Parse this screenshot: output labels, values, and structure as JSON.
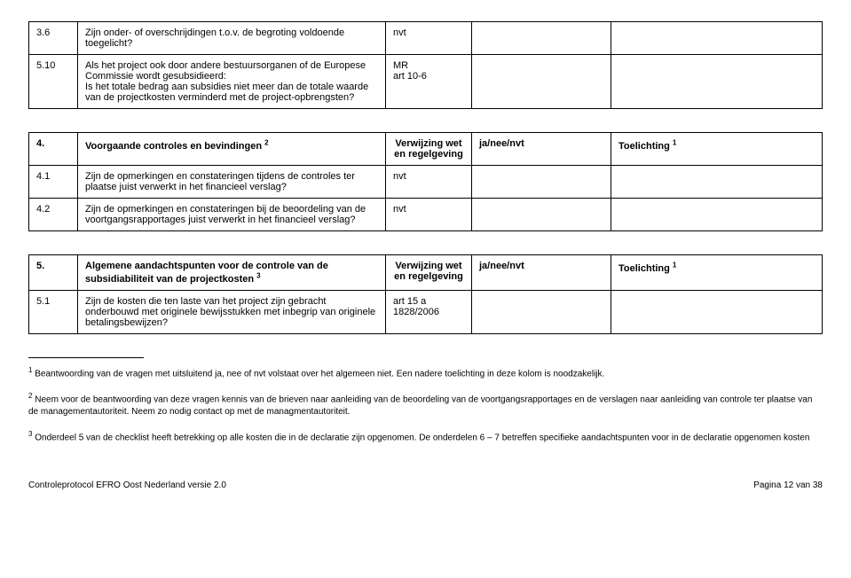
{
  "table1": {
    "rows": [
      {
        "num": "3.6",
        "desc": "Zijn onder- of overschrijdingen t.o.v. de begroting voldoende toegelicht?",
        "ref": "nvt",
        "ans": "",
        "note": ""
      },
      {
        "num": "5.10",
        "desc": "Als het project ook door andere bestuursorganen of de Europese Commissie wordt gesubsidieerd:\nIs het totale bedrag aan subsidies niet meer dan de totale waarde van de projectkosten verminderd met de project-opbrengsten?",
        "ref": "MR\nart 10-6",
        "ans": "",
        "note": ""
      }
    ]
  },
  "table2": {
    "header": {
      "num": "4.",
      "desc": "Voorgaande controles en bevindingen ",
      "sup": "2",
      "ref": "Verwijzing wet en regelgeving",
      "ans": "ja/nee/nvt",
      "note": "Toelichting ",
      "notesup": "1"
    },
    "rows": [
      {
        "num": "4.1",
        "desc": "Zijn de opmerkingen en constateringen tijdens de controles ter plaatse juist verwerkt in het financieel verslag?",
        "ref": "nvt",
        "ans": "",
        "note": ""
      },
      {
        "num": "4.2",
        "desc": "Zijn de opmerkingen en constateringen bij de beoordeling van de voortgangsrapportages juist verwerkt in het financieel verslag?",
        "ref": "nvt",
        "ans": "",
        "note": ""
      }
    ]
  },
  "table3": {
    "header": {
      "num": "5.",
      "desc": "Algemene aandachtspunten voor de controle van de subsidiabiliteit van de projectkosten ",
      "sup": "3",
      "ref": "Verwijzing wet en regelgeving",
      "ans": "ja/nee/nvt",
      "note": "Toelichting ",
      "notesup": "1"
    },
    "rows": [
      {
        "num": "5.1",
        "desc": "Zijn de kosten die ten laste van het project zijn gebracht onderbouwd met originele bewijsstukken met inbegrip van originele betalingsbewijzen?",
        "ref": "art 15 a\n1828/2006",
        "ans": "",
        "note": ""
      }
    ]
  },
  "footnotes": {
    "f1": "Beantwoording van de vragen met uitsluitend ja, nee of nvt volstaat over het algemeen niet. Een nadere toelichting in deze kolom is noodzakelijk.",
    "f2": "Neem voor de beantwoording van deze vragen kennis van de brieven naar aanleiding van de beoordeling van de voortgangsrapportages en de verslagen naar aanleiding van controle ter plaatse van de managementautoriteit. Neem zo nodig contact op met de managmentautoriteit.",
    "f3": "Onderdeel 5 van de checklist heeft betrekking op alle kosten die in de declaratie zijn opgenomen. De onderdelen 6 – 7 betreffen specifieke aandachtspunten voor in de declaratie opgenomen kosten"
  },
  "footer": {
    "left": "Controleprotocol EFRO Oost Nederland versie 2.0",
    "right": "Pagina 12 van 38"
  }
}
